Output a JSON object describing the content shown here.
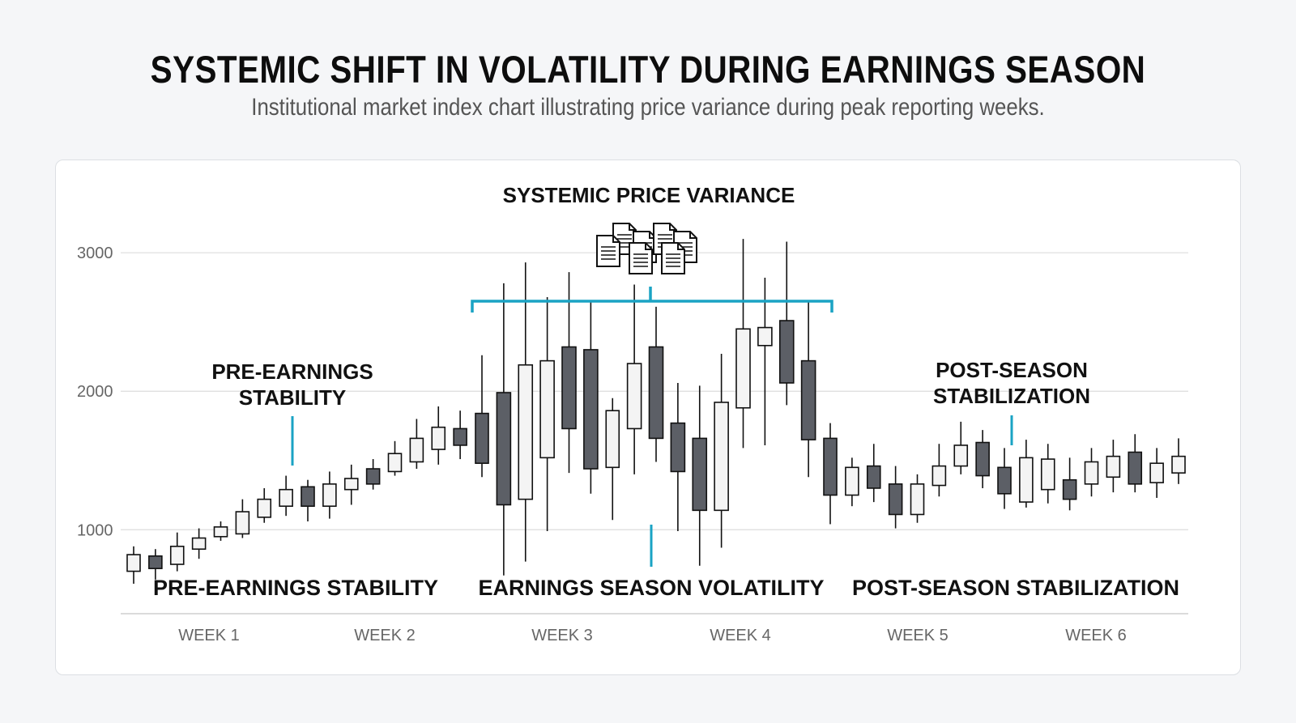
{
  "title": "SYSTEMIC SHIFT IN VOLATILITY DURING EARNINGS SEASON",
  "subtitle": "Institutional market index chart illustrating price variance during peak reporting weeks.",
  "colors": {
    "accent": "#1aa3c4",
    "bullish_fill": "#f4f4f4",
    "bearish_fill": "#5c5f66",
    "stroke": "#111111",
    "grid": "#dddddd"
  },
  "icons": {
    "variance_icon": "documents-icon"
  },
  "chart_data": {
    "type": "candlestick",
    "ylim": [
      300,
      3200
    ],
    "yticks": [
      1000,
      2000,
      3000
    ],
    "ytick_labels": [
      "1000",
      "2000",
      "3000"
    ],
    "x_categories": [
      "WEEK 1",
      "WEEK 2",
      "WEEK 3",
      "WEEK 4",
      "WEEK 5",
      "WEEK 6"
    ],
    "grid": true,
    "annotations": {
      "top": "SYSTEMIC PRICE VARIANCE",
      "pre": [
        "PRE-EARNINGS",
        "STABILITY"
      ],
      "post": [
        "POST-SEASON",
        "STABILIZATION"
      ]
    },
    "sections": [
      "PRE-EARNINGS STABILITY",
      "EARNINGS SEASON VOLATILITY",
      "POST-SEASON STABILIZATION"
    ],
    "candles": [
      {
        "open": 700,
        "close": 820,
        "low": 610,
        "high": 880
      },
      {
        "open": 810,
        "close": 720,
        "low": 640,
        "high": 860
      },
      {
        "open": 750,
        "close": 880,
        "low": 700,
        "high": 980
      },
      {
        "open": 860,
        "close": 940,
        "low": 790,
        "high": 1010
      },
      {
        "open": 950,
        "close": 1020,
        "low": 920,
        "high": 1060
      },
      {
        "open": 970,
        "close": 1130,
        "low": 940,
        "high": 1220
      },
      {
        "open": 1090,
        "close": 1220,
        "low": 1050,
        "high": 1300
      },
      {
        "open": 1170,
        "close": 1290,
        "low": 1100,
        "high": 1390
      },
      {
        "open": 1310,
        "close": 1170,
        "low": 1060,
        "high": 1360
      },
      {
        "open": 1170,
        "close": 1330,
        "low": 1080,
        "high": 1420
      },
      {
        "open": 1290,
        "close": 1370,
        "low": 1180,
        "high": 1470
      },
      {
        "open": 1440,
        "close": 1330,
        "low": 1290,
        "high": 1510
      },
      {
        "open": 1420,
        "close": 1550,
        "low": 1390,
        "high": 1640
      },
      {
        "open": 1490,
        "close": 1660,
        "low": 1440,
        "high": 1800
      },
      {
        "open": 1580,
        "close": 1740,
        "low": 1470,
        "high": 1890
      },
      {
        "open": 1730,
        "close": 1610,
        "low": 1510,
        "high": 1860
      },
      {
        "open": 1840,
        "close": 1480,
        "low": 1380,
        "high": 2260
      },
      {
        "open": 1990,
        "close": 1180,
        "low": 670,
        "high": 2780
      },
      {
        "open": 1220,
        "close": 2190,
        "low": 770,
        "high": 2930
      },
      {
        "open": 1520,
        "close": 2220,
        "low": 990,
        "high": 2680
      },
      {
        "open": 2320,
        "close": 1730,
        "low": 1410,
        "high": 2860
      },
      {
        "open": 2300,
        "close": 1440,
        "low": 1260,
        "high": 2650
      },
      {
        "open": 1450,
        "close": 1860,
        "low": 1070,
        "high": 1950
      },
      {
        "open": 1730,
        "close": 2200,
        "low": 1400,
        "high": 2770
      },
      {
        "open": 2320,
        "close": 1660,
        "low": 1490,
        "high": 2610
      },
      {
        "open": 1770,
        "close": 1420,
        "low": 990,
        "high": 2060
      },
      {
        "open": 1660,
        "close": 1140,
        "low": 740,
        "high": 2040
      },
      {
        "open": 1140,
        "close": 1920,
        "low": 870,
        "high": 2270
      },
      {
        "open": 1880,
        "close": 2450,
        "low": 1590,
        "high": 3100
      },
      {
        "open": 2330,
        "close": 2460,
        "low": 1610,
        "high": 2820
      },
      {
        "open": 2510,
        "close": 2060,
        "low": 1900,
        "high": 3080
      },
      {
        "open": 2220,
        "close": 1650,
        "low": 1380,
        "high": 2650
      },
      {
        "open": 1660,
        "close": 1250,
        "low": 1040,
        "high": 1770
      },
      {
        "open": 1250,
        "close": 1450,
        "low": 1170,
        "high": 1520
      },
      {
        "open": 1460,
        "close": 1300,
        "low": 1200,
        "high": 1620
      },
      {
        "open": 1330,
        "close": 1110,
        "low": 1010,
        "high": 1460
      },
      {
        "open": 1110,
        "close": 1330,
        "low": 1050,
        "high": 1400
      },
      {
        "open": 1320,
        "close": 1460,
        "low": 1240,
        "high": 1620
      },
      {
        "open": 1460,
        "close": 1610,
        "low": 1400,
        "high": 1780
      },
      {
        "open": 1630,
        "close": 1390,
        "low": 1300,
        "high": 1720
      },
      {
        "open": 1450,
        "close": 1260,
        "low": 1150,
        "high": 1590
      },
      {
        "open": 1200,
        "close": 1520,
        "low": 1160,
        "high": 1650
      },
      {
        "open": 1290,
        "close": 1510,
        "low": 1190,
        "high": 1620
      },
      {
        "open": 1360,
        "close": 1220,
        "low": 1140,
        "high": 1520
      },
      {
        "open": 1330,
        "close": 1490,
        "low": 1240,
        "high": 1590
      },
      {
        "open": 1380,
        "close": 1530,
        "low": 1270,
        "high": 1650
      },
      {
        "open": 1560,
        "close": 1330,
        "low": 1270,
        "high": 1690
      },
      {
        "open": 1340,
        "close": 1480,
        "low": 1230,
        "high": 1590
      },
      {
        "open": 1410,
        "close": 1530,
        "low": 1330,
        "high": 1660
      }
    ]
  }
}
